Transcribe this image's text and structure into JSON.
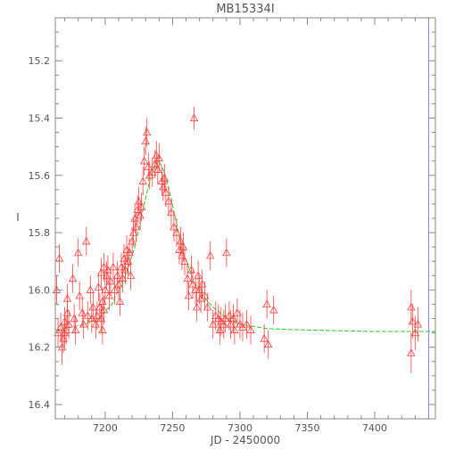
{
  "chart_data": {
    "type": "scatter",
    "title": "MB15334I",
    "xlabel": "JD - 2450000",
    "ylabel": "I",
    "xlim": [
      7163,
      7445
    ],
    "ylim": [
      16.45,
      15.05
    ],
    "y_inverted": true,
    "grid": false,
    "x_ticks": [
      7200,
      7250,
      7300,
      7350,
      7400
    ],
    "y_ticks": [
      15.2,
      15.4,
      15.6,
      15.8,
      16.0,
      16.2,
      16.4
    ],
    "x_tick_labels": [
      "7200",
      "7250",
      "7300",
      "7350",
      "7400"
    ],
    "y_tick_labels": [
      "15.2",
      "15.4",
      "15.6",
      "15.8",
      "16.0",
      "16.2",
      "16.4"
    ],
    "vertical_marker_x": 7440,
    "colors": {
      "points": "#ff4040",
      "model": "#22cc22",
      "axes": "#888888",
      "marker": "#8080ff"
    },
    "model_curve": {
      "x": [
        7163,
        7175,
        7185,
        7195,
        7205,
        7215,
        7222,
        7228,
        7233,
        7237,
        7240,
        7244,
        7248,
        7253,
        7258,
        7265,
        7272,
        7280,
        7290,
        7300,
        7320,
        7350,
        7400,
        7445
      ],
      "y": [
        16.14,
        16.13,
        16.12,
        16.1,
        16.05,
        15.95,
        15.85,
        15.72,
        15.62,
        15.56,
        15.55,
        15.59,
        15.66,
        15.77,
        15.87,
        15.96,
        16.02,
        16.06,
        16.1,
        16.12,
        16.135,
        16.14,
        16.145,
        16.145
      ]
    },
    "points": [
      {
        "x": 7164,
        "y": 16.0,
        "err": 0.05
      },
      {
        "x": 7165,
        "y": 16.15,
        "err": 0.05
      },
      {
        "x": 7166,
        "y": 15.89,
        "err": 0.05
      },
      {
        "x": 7167,
        "y": 16.13,
        "err": 0.05
      },
      {
        "x": 7168,
        "y": 16.2,
        "err": 0.06
      },
      {
        "x": 7169,
        "y": 16.17,
        "err": 0.05
      },
      {
        "x": 7170,
        "y": 16.11,
        "err": 0.05
      },
      {
        "x": 7170,
        "y": 16.15,
        "err": 0.05
      },
      {
        "x": 7171,
        "y": 16.14,
        "err": 0.05
      },
      {
        "x": 7172,
        "y": 16.08,
        "err": 0.05
      },
      {
        "x": 7172,
        "y": 16.03,
        "err": 0.05
      },
      {
        "x": 7173,
        "y": 16.12,
        "err": 0.05
      },
      {
        "x": 7176,
        "y": 15.96,
        "err": 0.05
      },
      {
        "x": 7177,
        "y": 16.1,
        "err": 0.05
      },
      {
        "x": 7178,
        "y": 16.14,
        "err": 0.05
      },
      {
        "x": 7180,
        "y": 15.87,
        "err": 0.05
      },
      {
        "x": 7181,
        "y": 16.02,
        "err": 0.05
      },
      {
        "x": 7183,
        "y": 16.08,
        "err": 0.05
      },
      {
        "x": 7184,
        "y": 16.12,
        "err": 0.05
      },
      {
        "x": 7186,
        "y": 15.83,
        "err": 0.05
      },
      {
        "x": 7187,
        "y": 16.09,
        "err": 0.05
      },
      {
        "x": 7189,
        "y": 16.0,
        "err": 0.05
      },
      {
        "x": 7190,
        "y": 16.1,
        "err": 0.05
      },
      {
        "x": 7191,
        "y": 16.06,
        "err": 0.05
      },
      {
        "x": 7193,
        "y": 16.12,
        "err": 0.05
      },
      {
        "x": 7194,
        "y": 16.09,
        "err": 0.05
      },
      {
        "x": 7195,
        "y": 15.99,
        "err": 0.05
      },
      {
        "x": 7196,
        "y": 16.06,
        "err": 0.05
      },
      {
        "x": 7197,
        "y": 15.94,
        "err": 0.05
      },
      {
        "x": 7197,
        "y": 16.1,
        "err": 0.05
      },
      {
        "x": 7198,
        "y": 16.04,
        "err": 0.05
      },
      {
        "x": 7198,
        "y": 16.14,
        "err": 0.05
      },
      {
        "x": 7199,
        "y": 15.92,
        "err": 0.05
      },
      {
        "x": 7199,
        "y": 16.07,
        "err": 0.05
      },
      {
        "x": 7200,
        "y": 16.0,
        "err": 0.05
      },
      {
        "x": 7201,
        "y": 15.95,
        "err": 0.05
      },
      {
        "x": 7202,
        "y": 15.93,
        "err": 0.05
      },
      {
        "x": 7203,
        "y": 16.02,
        "err": 0.05
      },
      {
        "x": 7204,
        "y": 15.97,
        "err": 0.05
      },
      {
        "x": 7206,
        "y": 15.92,
        "err": 0.05
      },
      {
        "x": 7207,
        "y": 16.0,
        "err": 0.05
      },
      {
        "x": 7209,
        "y": 15.95,
        "err": 0.05
      },
      {
        "x": 7210,
        "y": 15.98,
        "err": 0.05
      },
      {
        "x": 7211,
        "y": 16.04,
        "err": 0.05
      },
      {
        "x": 7212,
        "y": 15.92,
        "err": 0.05
      },
      {
        "x": 7213,
        "y": 15.96,
        "err": 0.05
      },
      {
        "x": 7214,
        "y": 15.89,
        "err": 0.05
      },
      {
        "x": 7215,
        "y": 15.93,
        "err": 0.05
      },
      {
        "x": 7216,
        "y": 15.86,
        "err": 0.05
      },
      {
        "x": 7217,
        "y": 15.9,
        "err": 0.05
      },
      {
        "x": 7218,
        "y": 15.87,
        "err": 0.05
      },
      {
        "x": 7219,
        "y": 15.95,
        "err": 0.05
      },
      {
        "x": 7220,
        "y": 15.83,
        "err": 0.05
      },
      {
        "x": 7221,
        "y": 15.8,
        "err": 0.05
      },
      {
        "x": 7222,
        "y": 15.75,
        "err": 0.05
      },
      {
        "x": 7223,
        "y": 15.78,
        "err": 0.05
      },
      {
        "x": 7224,
        "y": 15.72,
        "err": 0.05
      },
      {
        "x": 7225,
        "y": 15.69,
        "err": 0.05
      },
      {
        "x": 7226,
        "y": 15.74,
        "err": 0.05
      },
      {
        "x": 7227,
        "y": 15.71,
        "err": 0.05
      },
      {
        "x": 7228,
        "y": 15.62,
        "err": 0.05
      },
      {
        "x": 7229,
        "y": 15.55,
        "err": 0.05
      },
      {
        "x": 7230,
        "y": 15.48,
        "err": 0.05
      },
      {
        "x": 7231,
        "y": 15.45,
        "err": 0.05
      },
      {
        "x": 7232,
        "y": 15.57,
        "err": 0.05
      },
      {
        "x": 7233,
        "y": 15.6,
        "err": 0.05
      },
      {
        "x": 7235,
        "y": 15.59,
        "err": 0.05
      },
      {
        "x": 7237,
        "y": 15.56,
        "err": 0.05
      },
      {
        "x": 7238,
        "y": 15.53,
        "err": 0.05
      },
      {
        "x": 7239,
        "y": 15.58,
        "err": 0.05
      },
      {
        "x": 7240,
        "y": 15.54,
        "err": 0.05
      },
      {
        "x": 7242,
        "y": 15.62,
        "err": 0.05
      },
      {
        "x": 7243,
        "y": 15.64,
        "err": 0.05
      },
      {
        "x": 7244,
        "y": 15.61,
        "err": 0.05
      },
      {
        "x": 7245,
        "y": 15.66,
        "err": 0.05
      },
      {
        "x": 7247,
        "y": 15.69,
        "err": 0.05
      },
      {
        "x": 7249,
        "y": 15.73,
        "err": 0.05
      },
      {
        "x": 7251,
        "y": 15.78,
        "err": 0.05
      },
      {
        "x": 7253,
        "y": 15.8,
        "err": 0.05
      },
      {
        "x": 7255,
        "y": 15.86,
        "err": 0.05
      },
      {
        "x": 7256,
        "y": 15.83,
        "err": 0.05
      },
      {
        "x": 7257,
        "y": 15.88,
        "err": 0.05
      },
      {
        "x": 7258,
        "y": 15.85,
        "err": 0.05
      },
      {
        "x": 7259,
        "y": 15.9,
        "err": 0.05
      },
      {
        "x": 7261,
        "y": 15.96,
        "err": 0.05
      },
      {
        "x": 7262,
        "y": 16.02,
        "err": 0.05
      },
      {
        "x": 7264,
        "y": 15.93,
        "err": 0.05
      },
      {
        "x": 7265,
        "y": 15.98,
        "err": 0.05
      },
      {
        "x": 7266,
        "y": 15.4,
        "err": 0.04
      },
      {
        "x": 7267,
        "y": 16.0,
        "err": 0.05
      },
      {
        "x": 7268,
        "y": 16.06,
        "err": 0.05
      },
      {
        "x": 7269,
        "y": 15.95,
        "err": 0.05
      },
      {
        "x": 7270,
        "y": 16.0,
        "err": 0.05
      },
      {
        "x": 7271,
        "y": 16.03,
        "err": 0.05
      },
      {
        "x": 7272,
        "y": 15.98,
        "err": 0.05
      },
      {
        "x": 7274,
        "y": 16.02,
        "err": 0.05
      },
      {
        "x": 7276,
        "y": 16.06,
        "err": 0.05
      },
      {
        "x": 7278,
        "y": 15.88,
        "err": 0.05
      },
      {
        "x": 7280,
        "y": 16.12,
        "err": 0.05
      },
      {
        "x": 7282,
        "y": 16.09,
        "err": 0.05
      },
      {
        "x": 7284,
        "y": 16.1,
        "err": 0.05
      },
      {
        "x": 7285,
        "y": 16.14,
        "err": 0.05
      },
      {
        "x": 7286,
        "y": 16.11,
        "err": 0.05
      },
      {
        "x": 7288,
        "y": 16.12,
        "err": 0.05
      },
      {
        "x": 7289,
        "y": 16.1,
        "err": 0.05
      },
      {
        "x": 7290,
        "y": 15.87,
        "err": 0.05
      },
      {
        "x": 7292,
        "y": 16.09,
        "err": 0.05
      },
      {
        "x": 7293,
        "y": 16.12,
        "err": 0.05
      },
      {
        "x": 7295,
        "y": 16.1,
        "err": 0.05
      },
      {
        "x": 7296,
        "y": 16.14,
        "err": 0.05
      },
      {
        "x": 7298,
        "y": 16.08,
        "err": 0.05
      },
      {
        "x": 7300,
        "y": 16.12,
        "err": 0.05
      },
      {
        "x": 7302,
        "y": 16.13,
        "err": 0.05
      },
      {
        "x": 7305,
        "y": 16.12,
        "err": 0.05
      },
      {
        "x": 7308,
        "y": 16.14,
        "err": 0.05
      },
      {
        "x": 7318,
        "y": 16.17,
        "err": 0.05
      },
      {
        "x": 7320,
        "y": 16.05,
        "err": 0.05
      },
      {
        "x": 7321,
        "y": 16.19,
        "err": 0.05
      },
      {
        "x": 7325,
        "y": 16.07,
        "err": 0.05
      },
      {
        "x": 7427,
        "y": 16.06,
        "err": 0.06
      },
      {
        "x": 7428,
        "y": 16.11,
        "err": 0.06
      },
      {
        "x": 7427,
        "y": 16.22,
        "err": 0.07
      },
      {
        "x": 7430,
        "y": 16.15,
        "err": 0.06
      },
      {
        "x": 7432,
        "y": 16.12,
        "err": 0.06
      }
    ]
  }
}
